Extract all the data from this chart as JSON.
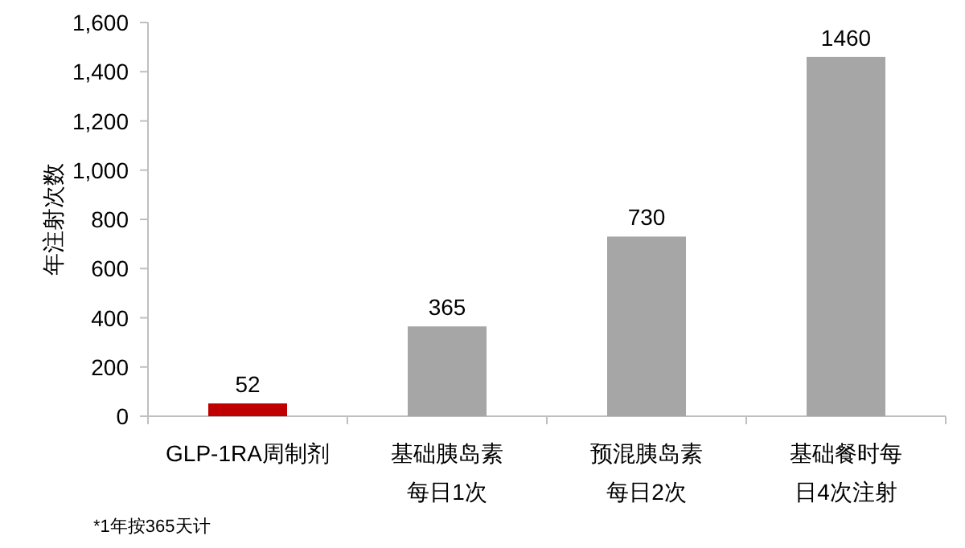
{
  "chart_data": {
    "type": "bar",
    "ylabel": "年注射次数",
    "categories": [
      "GLP-1RA周制剂",
      "基础胰岛素每日1次",
      "预混胰岛素每日2次",
      "基础餐时每日4次注射"
    ],
    "values": [
      52,
      365,
      730,
      1460
    ],
    "colors": [
      "#c00000",
      "#a6a6a6",
      "#a6a6a6",
      "#a6a6a6"
    ],
    "data_labels": true,
    "ylim": [
      0,
      1600
    ],
    "yticks": [
      0,
      200,
      400,
      600,
      800,
      {
        "value": 1000,
        "label": "1,000"
      },
      {
        "value": 1200,
        "label": "1,200"
      },
      {
        "value": 1400,
        "label": "1,400"
      },
      {
        "value": 1600,
        "label": "1,600"
      }
    ],
    "grid": false,
    "annotations": [
      "*1年按365天计"
    ]
  }
}
